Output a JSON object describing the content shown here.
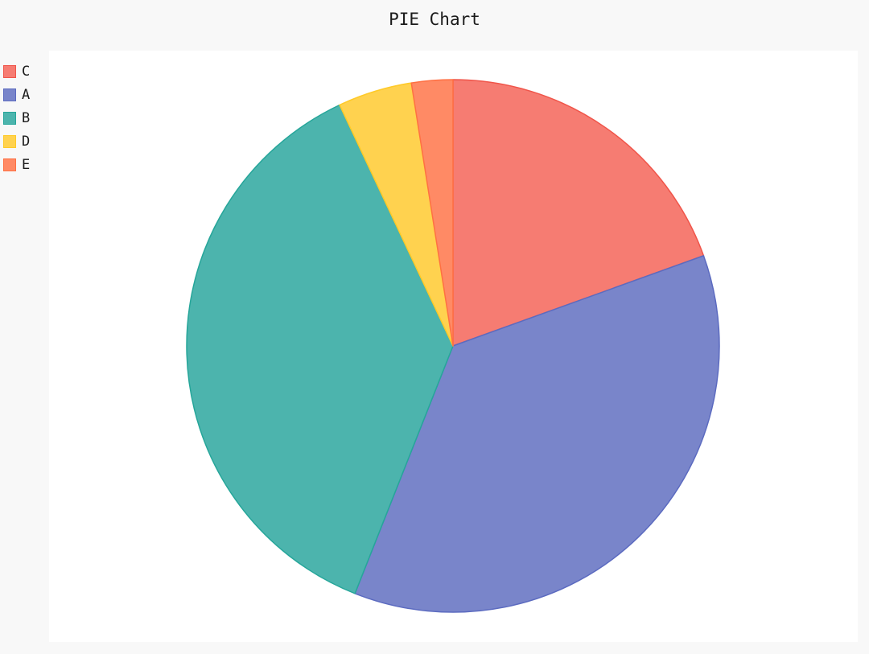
{
  "title": "PIE Chart",
  "chart_data": {
    "type": "pie",
    "title": "PIE Chart",
    "legend_position": "top-left",
    "slices": [
      {
        "label": "C",
        "value": 19.5,
        "color": "#f67c72",
        "stroke": "#f0554a"
      },
      {
        "label": "A",
        "value": 36.5,
        "color": "#7985ca",
        "stroke": "#5c6bc0"
      },
      {
        "label": "B",
        "value": 37.0,
        "color": "#4cb4ad",
        "stroke": "#26a69a"
      },
      {
        "label": "D",
        "value": 4.5,
        "color": "#ffd24f",
        "stroke": "#ffca28"
      },
      {
        "label": "E",
        "value": 2.5,
        "color": "#ff8a65",
        "stroke": "#ff7043"
      }
    ]
  }
}
